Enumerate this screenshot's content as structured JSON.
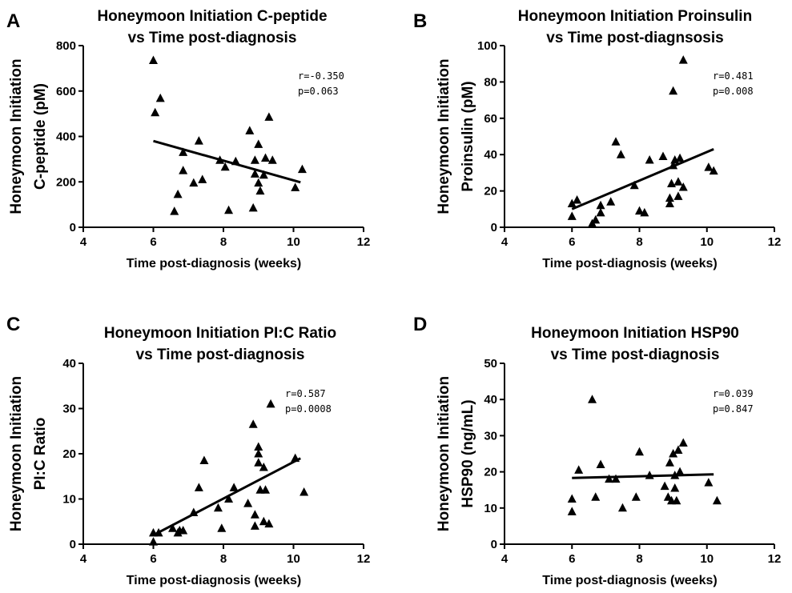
{
  "chart_data": [
    {
      "type": "scatter",
      "panel": "A",
      "title": [
        "Honeymoon Initiation C-peptide",
        "vs Time post-diagnosis"
      ],
      "xlabel": "Time post-diagnosis (weeks)",
      "ylabel": [
        "Honeymoon Initiation",
        "C-peptide (pM)"
      ],
      "xlim": [
        4,
        12
      ],
      "ylim": [
        0,
        800
      ],
      "xticks": [
        4,
        6,
        8,
        10,
        12
      ],
      "yticks": [
        0,
        200,
        400,
        600,
        800
      ],
      "stats": [
        "r=-0.350",
        "p=0.063"
      ],
      "points": [
        [
          6.0,
          735
        ],
        [
          6.05,
          505
        ],
        [
          6.2,
          568
        ],
        [
          6.6,
          70
        ],
        [
          6.7,
          145
        ],
        [
          6.85,
          250
        ],
        [
          6.85,
          330
        ],
        [
          7.15,
          195
        ],
        [
          7.3,
          380
        ],
        [
          7.4,
          210
        ],
        [
          7.9,
          295
        ],
        [
          8.05,
          265
        ],
        [
          8.15,
          75
        ],
        [
          8.35,
          290
        ],
        [
          8.75,
          425
        ],
        [
          8.85,
          85
        ],
        [
          8.9,
          235
        ],
        [
          8.9,
          295
        ],
        [
          9.0,
          195
        ],
        [
          9.0,
          365
        ],
        [
          9.05,
          160
        ],
        [
          9.15,
          230
        ],
        [
          9.2,
          305
        ],
        [
          9.3,
          485
        ],
        [
          9.4,
          295
        ],
        [
          10.05,
          175
        ],
        [
          10.25,
          255
        ]
      ],
      "fit": [
        [
          6,
          380
        ],
        [
          10.2,
          198
        ]
      ]
    },
    {
      "type": "scatter",
      "panel": "B",
      "title": [
        "Honeymoon Initiation Proinsulin",
        "vs Time post-diagnsosis"
      ],
      "xlabel": "Time post-diagnosis (weeks)",
      "ylabel": [
        "Honeymoon Initiation",
        "Proinsulin (pM)"
      ],
      "xlim": [
        4,
        12
      ],
      "ylim": [
        0,
        100
      ],
      "xticks": [
        4,
        6,
        8,
        10,
        12
      ],
      "yticks": [
        0,
        20,
        40,
        60,
        80,
        100
      ],
      "stats": [
        "r=0.481",
        "p=0.008"
      ],
      "points": [
        [
          6.0,
          6
        ],
        [
          6.0,
          13
        ],
        [
          6.15,
          15
        ],
        [
          6.6,
          2
        ],
        [
          6.7,
          4
        ],
        [
          6.85,
          8
        ],
        [
          6.85,
          12
        ],
        [
          7.15,
          14
        ],
        [
          7.3,
          47
        ],
        [
          7.45,
          40
        ],
        [
          7.85,
          23
        ],
        [
          8.0,
          9
        ],
        [
          8.15,
          8
        ],
        [
          8.3,
          37
        ],
        [
          8.7,
          39
        ],
        [
          8.9,
          13
        ],
        [
          8.9,
          16
        ],
        [
          8.95,
          24
        ],
        [
          9.0,
          34
        ],
        [
          9.0,
          75
        ],
        [
          9.05,
          37
        ],
        [
          9.15,
          25
        ],
        [
          9.15,
          17
        ],
        [
          9.2,
          38
        ],
        [
          9.3,
          22
        ],
        [
          9.3,
          92
        ],
        [
          10.05,
          33
        ],
        [
          10.2,
          31
        ]
      ],
      "fit": [
        [
          6,
          10
        ],
        [
          10.2,
          43
        ]
      ]
    },
    {
      "type": "scatter",
      "panel": "C",
      "title": [
        "Honeymoon Initiation PI:C Ratio",
        "vs Time post-diagnosis"
      ],
      "xlabel": "Time post-diagnosis (weeks)",
      "ylabel": [
        "Honeymoon Initiation",
        "PI:C Ratio"
      ],
      "xlim": [
        4,
        12
      ],
      "ylim": [
        0,
        40
      ],
      "xticks": [
        4,
        6,
        8,
        10,
        12
      ],
      "yticks": [
        0,
        10,
        20,
        30,
        40
      ],
      "stats": [
        "r=0.587",
        "p=0.0008"
      ],
      "points": [
        [
          6.0,
          2.5
        ],
        [
          6.0,
          0.5
        ],
        [
          6.15,
          2.5
        ],
        [
          6.55,
          3.5
        ],
        [
          6.7,
          2.5
        ],
        [
          6.75,
          3
        ],
        [
          6.85,
          3
        ],
        [
          7.15,
          7
        ],
        [
          7.3,
          12.5
        ],
        [
          7.45,
          18.5
        ],
        [
          7.85,
          8
        ],
        [
          7.95,
          3.5
        ],
        [
          8.15,
          10
        ],
        [
          8.3,
          12.5
        ],
        [
          8.7,
          9
        ],
        [
          8.85,
          26.5
        ],
        [
          8.9,
          4
        ],
        [
          8.9,
          6.5
        ],
        [
          9.0,
          18
        ],
        [
          9.0,
          21.5
        ],
        [
          9.0,
          20
        ],
        [
          9.05,
          12
        ],
        [
          9.15,
          17
        ],
        [
          9.15,
          5
        ],
        [
          9.2,
          12
        ],
        [
          9.3,
          4.5
        ],
        [
          9.35,
          31
        ],
        [
          10.05,
          19
        ],
        [
          10.3,
          11.5
        ]
      ],
      "fit": [
        [
          6,
          2
        ],
        [
          10.2,
          19
        ]
      ]
    },
    {
      "type": "scatter",
      "panel": "D",
      "title": [
        "Honeymoon Initiation HSP90",
        "vs Time post-diagnosis"
      ],
      "xlabel": "Time post-diagnosis (weeks)",
      "ylabel": [
        "Honeymoon Initiation",
        "HSP90 (ng/mL)"
      ],
      "xlim": [
        4,
        12
      ],
      "ylim": [
        0,
        50
      ],
      "xticks": [
        4,
        6,
        8,
        10,
        12
      ],
      "yticks": [
        0,
        10,
        20,
        30,
        40,
        50
      ],
      "stats": [
        "r=0.039",
        "p=0.847"
      ],
      "points": [
        [
          6.0,
          12.5
        ],
        [
          6.0,
          9
        ],
        [
          6.2,
          20.5
        ],
        [
          6.6,
          40
        ],
        [
          6.7,
          13
        ],
        [
          6.85,
          22
        ],
        [
          7.1,
          18
        ],
        [
          7.3,
          18
        ],
        [
          7.5,
          10
        ],
        [
          7.9,
          13
        ],
        [
          8.0,
          25.5
        ],
        [
          8.3,
          19
        ],
        [
          8.75,
          16
        ],
        [
          8.85,
          13
        ],
        [
          8.9,
          22.5
        ],
        [
          8.95,
          12
        ],
        [
          9.0,
          25
        ],
        [
          9.05,
          19
        ],
        [
          9.05,
          15.5
        ],
        [
          9.1,
          12
        ],
        [
          9.15,
          26
        ],
        [
          9.2,
          20
        ],
        [
          9.3,
          28
        ],
        [
          10.05,
          17
        ],
        [
          10.3,
          12
        ]
      ],
      "fit": [
        [
          6,
          18.3
        ],
        [
          10.2,
          19.3
        ]
      ]
    }
  ]
}
